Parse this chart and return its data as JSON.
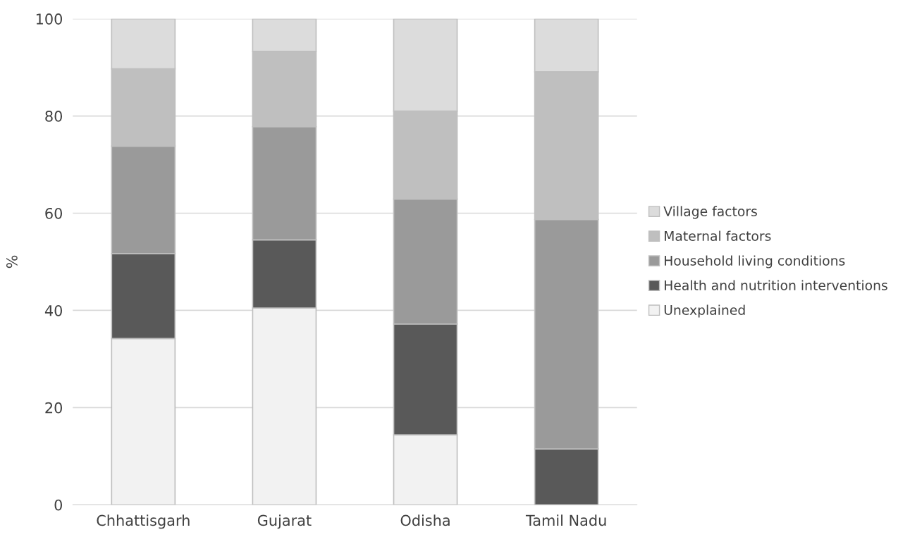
{
  "chart_data": {
    "type": "bar",
    "stacked": true,
    "ylabel": "%",
    "categories": [
      "Chhattisgarh",
      "Gujarat",
      "Odisha",
      "Tamil Nadu"
    ],
    "series": [
      {
        "name": "Unexplained",
        "color": "#f2f2f2",
        "values": [
          34.2,
          40.5,
          14.4,
          0
        ]
      },
      {
        "name": "Health and nutrition interventions",
        "color": "#595959",
        "values": [
          17.5,
          14.0,
          22.8,
          11.5
        ]
      },
      {
        "name": "Household living conditions",
        "color": "#9a9a9a",
        "values": [
          22.1,
          23.3,
          25.7,
          47.2
        ]
      },
      {
        "name": "Maternal factors",
        "color": "#bfbfbf",
        "values": [
          15.9,
          15.5,
          18.1,
          30.4
        ]
      },
      {
        "name": "Village factors",
        "color": "#dcdcdc",
        "values": [
          10.3,
          6.7,
          19.0,
          10.9
        ]
      }
    ],
    "ylim": [
      0,
      100
    ],
    "yticks": [
      0,
      20,
      40,
      60,
      80,
      100
    ],
    "grid": "y",
    "legend": "right"
  }
}
